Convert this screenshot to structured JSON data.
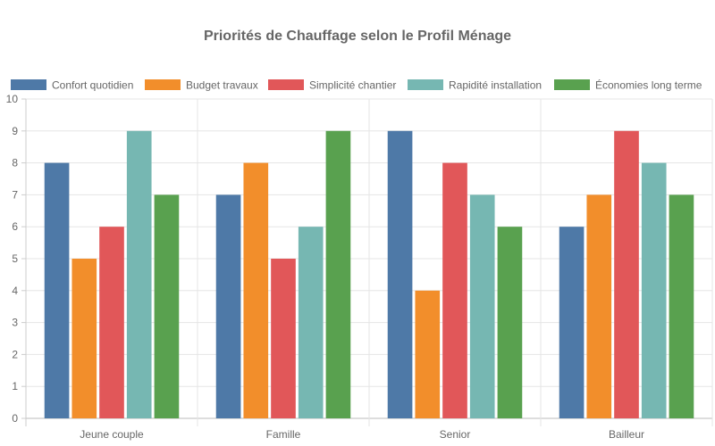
{
  "chart_data": {
    "type": "bar",
    "title": "Priorités de Chauffage selon le Profil Ménage",
    "categories": [
      "Jeune couple",
      "Famille",
      "Senior",
      "Bailleur"
    ],
    "series": [
      {
        "name": "Confort quotidien",
        "color": "#4e79a7",
        "values": [
          8,
          7,
          9,
          6
        ]
      },
      {
        "name": "Budget travaux",
        "color": "#f28e2b",
        "values": [
          5,
          8,
          4,
          7
        ]
      },
      {
        "name": "Simplicité chantier",
        "color": "#e15759",
        "values": [
          6,
          5,
          8,
          9
        ]
      },
      {
        "name": "Rapidité installation",
        "color": "#76b7b2",
        "values": [
          9,
          6,
          7,
          8
        ]
      },
      {
        "name": "Économies long terme",
        "color": "#59a14f",
        "values": [
          7,
          9,
          6,
          7
        ]
      }
    ],
    "ylim": [
      0,
      10
    ],
    "yticks": [
      "0",
      "1",
      "2",
      "3",
      "4",
      "5",
      "6",
      "7",
      "8",
      "9",
      "10"
    ],
    "grid": true,
    "legend": "top"
  }
}
